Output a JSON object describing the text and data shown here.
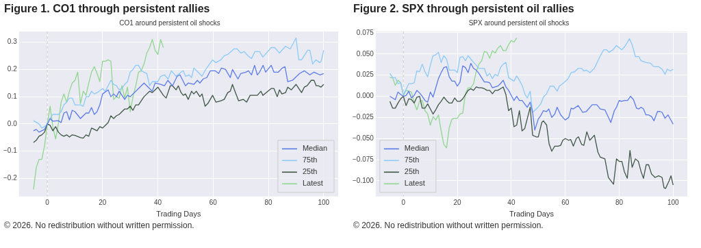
{
  "chart_data": [
    {
      "type": "line",
      "title": "Figure 1. CO1 through persistent rallies",
      "subtitle": "CO1 around persistent oil shocks",
      "xlabel": "Trading Days",
      "annotations": [
        "© 2026. No redistribution without written permission."
      ],
      "xlim": [
        -10.25,
        105.25
      ],
      "xticks": [
        0,
        20,
        40,
        60,
        80,
        100
      ],
      "ylim": [
        -0.266,
        0.339
      ],
      "yticks": [
        {
          "value": -0.2,
          "label": "−0.2"
        },
        {
          "value": -0.1,
          "label": "−0.1"
        },
        {
          "value": 0,
          "label": "0.0"
        },
        {
          "value": 0.1,
          "label": "0.1"
        },
        {
          "value": 0.2,
          "label": "0.2"
        },
        {
          "value": 0.3,
          "label": "0.3"
        }
      ],
      "grid": true,
      "legend": "bottom right",
      "marker": "none",
      "line_style": "solid",
      "ref_lines": [
        {
          "axis": "x",
          "value": 0,
          "color": "#c8c8c8",
          "line_style": "dashed"
        }
      ],
      "series": [
        {
          "name": "Median",
          "color": "#5b7be8",
          "x": [
            -5,
            -4,
            -3,
            -1,
            0,
            1,
            2,
            4,
            5,
            6,
            7,
            8,
            9,
            10,
            12,
            14,
            15,
            16,
            17,
            18,
            19,
            20,
            22,
            23,
            24,
            25,
            26,
            28,
            29,
            30,
            32,
            34,
            35,
            37,
            38,
            39,
            41,
            42.4,
            43.6,
            45.3,
            47,
            48,
            50,
            51,
            53,
            54.3,
            55.2,
            56.4,
            57.7,
            59,
            60.7,
            62,
            63,
            64.5,
            66.2,
            67,
            69,
            70,
            71.8,
            72.8,
            73.9,
            75,
            76,
            76.8,
            78.1,
            79,
            81,
            82,
            83.6,
            85,
            86,
            87,
            88.7,
            91.3,
            93,
            95,
            96.5,
            98.6,
            100
          ],
          "values": [
            -0.025,
            -0.02,
            -0.03,
            -0.02,
            0,
            0.02,
            0.01,
            0.012,
            0.005,
            0.04,
            0.045,
            0.015,
            0.05,
            0.045,
            0.02,
            0.04,
            0.04,
            0.06,
            0.035,
            0.045,
            0.07,
            0.11,
            0.125,
            0.1,
            0.11,
            0.1,
            0.12,
            0.09,
            0.105,
            0.1,
            0.12,
            0.14,
            0.15,
            0.13,
            0.12,
            0.15,
            0.145,
            0.14,
            0.16,
            0.14,
            0.175,
            0.18,
            0.14,
            0.15,
            0.145,
            0.16,
            0.15,
            0.165,
            0.17,
            0.195,
            0.195,
            0.185,
            0.205,
            0.2,
            0.17,
            0.2,
            0.165,
            0.185,
            0.19,
            0.195,
            0.18,
            0.215,
            0.18,
            0.19,
            0.215,
            0.19,
            0.215,
            0.19,
            0.19,
            0.205,
            0.21,
            0.155,
            0.16,
            0.185,
            0.195,
            0.18,
            0.19,
            0.18,
            0.185
          ]
        },
        {
          "name": "75th",
          "color": "#8ccaf7",
          "x": [
            -5,
            -3,
            -2,
            -1,
            0,
            1,
            2,
            4,
            5,
            6,
            7,
            8,
            9,
            10,
            12,
            13,
            14,
            15,
            16,
            17,
            18,
            20,
            21,
            22,
            23,
            24,
            25,
            26,
            27,
            28,
            29,
            30,
            31,
            32,
            33,
            34,
            35,
            36,
            37,
            38,
            40,
            41,
            42.4,
            43.7,
            44.9,
            46.6,
            48.4,
            49.2,
            50,
            51.3,
            52.2,
            53,
            56,
            57.3,
            59.8,
            61,
            62.8,
            64,
            65.3,
            67.5,
            68.7,
            70,
            71.3,
            72.6,
            73.9,
            75.1,
            76.8,
            78,
            81,
            82.3,
            84,
            86.2,
            87.9,
            90,
            91,
            92,
            94.2,
            95,
            96,
            97.2,
            98.6,
            99.1,
            100
          ],
          "values": [
            0.012,
            0,
            -0.015,
            -0.01,
            0,
            0.02,
            0.035,
            0.035,
            0.045,
            0.07,
            0.08,
            0.095,
            0.095,
            0.07,
            0.07,
            0.065,
            0.1,
            0.1,
            0.12,
            0.11,
            0.115,
            0.13,
            0.12,
            0.14,
            0.16,
            0.145,
            0.14,
            0.125,
            0.13,
            0.145,
            0.155,
            0.19,
            0.2,
            0.215,
            0.215,
            0.195,
            0.19,
            0.185,
            0.14,
            0.155,
            0.155,
            0.175,
            0.18,
            0.165,
            0.195,
            0.175,
            0.19,
            0.195,
            0.175,
            0.18,
            0.17,
            0.205,
            0.175,
            0.2,
            0.235,
            0.225,
            0.235,
            0.25,
            0.255,
            0.275,
            0.275,
            0.26,
            0.265,
            0.25,
            0.24,
            0.265,
            0.265,
            0.245,
            0.28,
            0.28,
            0.26,
            0.285,
            0.275,
            0.315,
            0.235,
            0.235,
            0.27,
            0.27,
            0.22,
            0.235,
            0.225,
            0.23,
            0.27
          ]
        },
        {
          "name": "25th",
          "color": "#3f5546",
          "x": [
            -5,
            -4,
            -3,
            -2,
            -1,
            0,
            1,
            2,
            3,
            4,
            5,
            6,
            7,
            8,
            9,
            10,
            12,
            13,
            14,
            15,
            16,
            17,
            18,
            19,
            20,
            21,
            22,
            23,
            24,
            25,
            26,
            27,
            28,
            29,
            30,
            31,
            32,
            33,
            34,
            35,
            36,
            37,
            38,
            39,
            40,
            41,
            42,
            43,
            44.5,
            45.3,
            46.6,
            47.4,
            48.4,
            49.2,
            50,
            51,
            52.2,
            53,
            53.9,
            55.2,
            56,
            57.1,
            58.1,
            59.8,
            61,
            62.8,
            64,
            65.3,
            66.2,
            67,
            67.9,
            69.2,
            70.9,
            72.1,
            73.4,
            75.1,
            76,
            77.3,
            78,
            79.8,
            81,
            82,
            83.2,
            84,
            84.9,
            86.2,
            87,
            88.3,
            90,
            92,
            93,
            94,
            95.5,
            96.5,
            97.3,
            98.1,
            99,
            100
          ],
          "values": [
            -0.068,
            -0.06,
            -0.045,
            -0.04,
            -0.03,
            0,
            -0.005,
            -0.025,
            -0.01,
            -0.03,
            -0.04,
            -0.045,
            -0.04,
            -0.048,
            -0.04,
            -0.042,
            -0.05,
            -0.052,
            -0.04,
            -0.045,
            -0.015,
            -0.02,
            -0.025,
            -0.01,
            -0.015,
            -0.005,
            0.005,
            0.03,
            0.02,
            0.03,
            0.035,
            0.045,
            0.055,
            0.055,
            0.065,
            0.05,
            0.07,
            0.07,
            0.085,
            0.1,
            0.11,
            0.12,
            0.115,
            0.125,
            0.135,
            0.12,
            0.105,
            0.095,
            0.14,
            0.14,
            0.125,
            0.14,
            0.115,
            0.105,
            0.11,
            0.09,
            0.12,
            0.11,
            0.12,
            0.1,
            0.11,
            0.065,
            0.075,
            0.105,
            0.08,
            0.085,
            0.09,
            0.115,
            0.12,
            0.145,
            0.12,
            0.085,
            0.09,
            0.08,
            0.105,
            0.105,
            0.105,
            0.12,
            0.105,
            0.12,
            0.13,
            0.13,
            0.1,
            0.125,
            0.11,
            0.115,
            0.135,
            0.125,
            0.145,
            0.115,
            0.135,
            0.14,
            0.16,
            0.16,
            0.14,
            0.14,
            0.135,
            0.145
          ]
        },
        {
          "name": "Latest",
          "color": "#8fd68f",
          "x": [
            -5,
            -4,
            -3,
            -2,
            -1,
            0,
            1,
            2,
            3,
            4,
            5,
            6,
            7,
            8,
            9,
            10,
            11,
            12,
            13,
            14,
            15,
            16,
            17,
            18,
            19,
            20,
            21,
            22,
            23,
            24,
            25,
            26,
            27,
            28,
            29,
            30,
            31,
            32,
            33,
            34,
            35,
            36,
            37,
            38,
            39,
            40,
            41,
            42
          ],
          "values": [
            -0.24,
            -0.16,
            -0.13,
            -0.13,
            -0.08,
            0,
            0.065,
            -0.01,
            -0.055,
            0,
            0.08,
            0.11,
            0.08,
            0.12,
            0.15,
            0.16,
            0.19,
            0.075,
            0.12,
            0.105,
            0.15,
            0.19,
            0.21,
            0.185,
            0.155,
            0.23,
            0.23,
            0.235,
            0.23,
            0.09,
            0.1,
            0.095,
            0.14,
            0.095,
            0.135,
            0.045,
            0.1,
            0.14,
            0.19,
            0.195,
            0.22,
            0.26,
            0.28,
            0.31,
            0.27,
            0.255,
            0.31,
            0.28
          ]
        }
      ]
    },
    {
      "type": "line",
      "title": "Figure 2. SPX through persistent oil rallies",
      "subtitle": "SPX around persistent oil shocks",
      "xlabel": "Trading Days",
      "annotations": [
        "© 2026. No redistribution without written permission."
      ],
      "xlim": [
        -10.25,
        105.25
      ],
      "xticks": [
        0,
        20,
        40,
        60,
        80,
        100
      ],
      "ylim": [
        -0.1185,
        0.0766
      ],
      "yticks": [
        {
          "value": -0.1,
          "label": "−0.100"
        },
        {
          "value": -0.075,
          "label": "−0.075"
        },
        {
          "value": -0.05,
          "label": "−0.050"
        },
        {
          "value": -0.025,
          "label": "−0.025"
        },
        {
          "value": 0,
          "label": "0.000"
        },
        {
          "value": 0.025,
          "label": "0.025"
        },
        {
          "value": 0.05,
          "label": "0.050"
        },
        {
          "value": 0.075,
          "label": "0.075"
        }
      ],
      "grid": true,
      "legend": "bottom left",
      "marker": "none",
      "line_style": "solid",
      "ref_lines": [
        {
          "axis": "x",
          "value": 0,
          "color": "#c8c8c8",
          "line_style": "dashed"
        }
      ],
      "series": [
        {
          "name": "Median",
          "color": "#5b7be8",
          "x": [
            -5,
            -3,
            -2,
            -1,
            0,
            1,
            2,
            3,
            4,
            5,
            6,
            7,
            8,
            9,
            10,
            11,
            12,
            13,
            14,
            15,
            16,
            17,
            18,
            19,
            20,
            21,
            22,
            23,
            24,
            25,
            26,
            27,
            28,
            29,
            30,
            31,
            32,
            33,
            34,
            35,
            36,
            37,
            38,
            39,
            40,
            41,
            42,
            43,
            44,
            45.9,
            47,
            47.9,
            48.7,
            50,
            50.9,
            51.9,
            53.1,
            53.9,
            55,
            56.1,
            57,
            58.3,
            60,
            61.3,
            62.2,
            63,
            64.8,
            66.5,
            67.8,
            70,
            71.7,
            73,
            74.7,
            76.9,
            78.2,
            79,
            80,
            80.8,
            82.1,
            83.1,
            84.2,
            85.3,
            86.4,
            87.3,
            88.1,
            89,
            89.9,
            90.9,
            92,
            92.9,
            94.2,
            95.1,
            95.9,
            97,
            98.1,
            100
          ],
          "values": [
            0,
            -0.004,
            0.005,
            0.002,
            0,
            0.001,
            0.006,
            -0.002,
            0.001,
            0.007,
            0.004,
            0,
            -0.005,
            -0.007,
            0.005,
            -0.001,
            0.01,
            0.021,
            0.028,
            0.034,
            0.035,
            0.023,
            0.018,
            0.018,
            0.012,
            0.017,
            0.036,
            0.034,
            0.028,
            0.039,
            0.033,
            0.031,
            0.027,
            0.022,
            0.017,
            0.017,
            0.016,
            0.01,
            0.011,
            0.012,
            0.015,
            0.019,
            0.011,
            0.007,
            0.001,
            -0.005,
            0,
            -0.005,
            -0.005,
            -0.013,
            -0.007,
            -0.019,
            -0.04,
            -0.027,
            -0.023,
            -0.017,
            -0.018,
            -0.015,
            -0.025,
            -0.021,
            -0.013,
            -0.022,
            -0.028,
            -0.025,
            -0.014,
            -0.015,
            -0.011,
            -0.019,
            -0.018,
            -0.01,
            -0.01,
            -0.015,
            -0.016,
            -0.031,
            -0.017,
            -0.013,
            -0.005,
            -0.006,
            -0.005,
            -0.005,
            0,
            -0.004,
            -0.014,
            -0.015,
            -0.013,
            -0.015,
            -0.022,
            -0.022,
            -0.024,
            -0.029,
            -0.018,
            -0.018,
            -0.019,
            -0.026,
            -0.022,
            -0.033
          ]
        },
        {
          "name": "75th",
          "color": "#8ccaf7",
          "x": [
            -5,
            -4,
            -3,
            -2,
            -1,
            0,
            1,
            2,
            3,
            4,
            5,
            6,
            7,
            8,
            9,
            10,
            11,
            12,
            13,
            14,
            15,
            16,
            17,
            18,
            19,
            20,
            21,
            22,
            23,
            24,
            25,
            26,
            27,
            28,
            29,
            30,
            31,
            32,
            33,
            34,
            35,
            36,
            37,
            38,
            39,
            40,
            41,
            42,
            43,
            44,
            45,
            45.9,
            47,
            47.9,
            49.6,
            50.9,
            51.9,
            53.1,
            54.4,
            55.7,
            57,
            57.8,
            59.1,
            60.9,
            62.2,
            63.5,
            64.8,
            66.1,
            66.9,
            67.8,
            69.1,
            70.8,
            73,
            74.3,
            75.3,
            76.2,
            77.7,
            79,
            81,
            82.1,
            83.8,
            84.8,
            86,
            87.3,
            88.1,
            89.9,
            91.6,
            92.9,
            94.6,
            95.9,
            97,
            97.8,
            99,
            100
          ],
          "values": [
            0.027,
            0.022,
            0.022,
            0.015,
            0.016,
            0.002,
            0.008,
            0.015,
            0.015,
            0.016,
            0.03,
            0.029,
            0.038,
            0.029,
            0.023,
            0.037,
            0.048,
            0.049,
            0.052,
            0.04,
            0.048,
            0.044,
            0.031,
            0.031,
            0.031,
            0.028,
            0.046,
            0.047,
            0.042,
            0.048,
            0.044,
            0.04,
            0.037,
            0.033,
            0.033,
            0.033,
            0.024,
            0.027,
            0.021,
            0.026,
            0.024,
            0.034,
            0.038,
            0.04,
            0.022,
            0.02,
            0.018,
            0.024,
            0.019,
            0.013,
            0.003,
            -0.002,
            0.006,
            -0.019,
            -0.014,
            -0.009,
            -0.001,
            0.003,
            0.012,
            0.012,
            0.006,
            0.012,
            0.015,
            0.02,
            0.028,
            0.029,
            0.033,
            0.033,
            0.03,
            0.031,
            0.028,
            0.033,
            0.048,
            0.055,
            0.055,
            0.052,
            0.055,
            0.06,
            0.055,
            0.059,
            0.068,
            0.061,
            0.047,
            0.047,
            0.042,
            0.04,
            0.039,
            0.035,
            0.035,
            0.032,
            0.026,
            0.032,
            0.03,
            0.032
          ]
        },
        {
          "name": "25th",
          "color": "#3f5546",
          "x": [
            -5,
            -4,
            -3,
            -2,
            -1,
            0,
            1,
            2,
            3,
            4,
            5,
            6,
            7,
            8,
            9,
            10,
            11,
            12,
            13,
            14,
            15,
            16,
            17,
            18,
            19,
            20,
            21,
            22,
            23,
            24,
            25,
            26,
            27,
            28,
            29,
            30,
            31,
            32,
            33,
            34,
            35,
            36,
            37,
            38,
            39,
            40,
            41,
            42,
            43,
            44,
            45,
            47,
            47.9,
            49.2,
            50,
            51.3,
            51.9,
            53.1,
            54,
            55,
            56.1,
            57.4,
            58.3,
            59.1,
            60,
            61.3,
            62,
            63,
            64.1,
            64.9,
            66.1,
            66.9,
            68,
            69.1,
            70.8,
            72.1,
            73,
            74.7,
            76,
            77.9,
            79,
            80,
            81,
            81.9,
            83,
            84,
            84.8,
            86,
            87.1,
            88.1,
            89,
            90,
            90.9,
            92,
            93.3,
            94.6,
            95.9,
            96.6,
            97.2,
            98.5,
            99.2,
            100
          ],
          "values": [
            -0.006,
            -0.014,
            -0.014,
            -0.008,
            -0.003,
            0,
            -0.011,
            -0.003,
            -0.004,
            -0.008,
            -0.001,
            0,
            -0.014,
            -0.014,
            -0.009,
            -0.015,
            -0.021,
            -0.016,
            -0.01,
            -0.006,
            -0.001,
            -0.005,
            -0.008,
            -0.008,
            -0.002,
            -0.006,
            -0.006,
            -0.003,
            0.002,
            0.007,
            0.009,
            0.007,
            0.011,
            0.01,
            0.01,
            0.009,
            0.007,
            0.007,
            0.003,
            0.007,
            0.007,
            0.009,
            0.011,
            0.002,
            -0.017,
            -0.014,
            -0.036,
            -0.034,
            -0.017,
            -0.041,
            -0.038,
            -0.013,
            -0.046,
            -0.048,
            -0.048,
            -0.031,
            -0.029,
            -0.034,
            -0.056,
            -0.065,
            -0.059,
            -0.059,
            -0.058,
            -0.052,
            -0.05,
            -0.052,
            -0.051,
            -0.059,
            -0.05,
            -0.048,
            -0.057,
            -0.058,
            -0.042,
            -0.052,
            -0.046,
            -0.066,
            -0.072,
            -0.074,
            -0.096,
            -0.104,
            -0.074,
            -0.077,
            -0.077,
            -0.089,
            -0.097,
            -0.064,
            -0.084,
            -0.074,
            -0.077,
            -0.089,
            -0.097,
            -0.081,
            -0.081,
            -0.092,
            -0.096,
            -0.094,
            -0.096,
            -0.108,
            -0.109,
            -0.1,
            -0.094,
            -0.105
          ]
        },
        {
          "name": "Latest",
          "color": "#8fd68f",
          "x": [
            -5,
            -4,
            -3,
            -2,
            -1,
            0,
            1,
            2,
            3,
            4,
            5,
            6,
            7,
            8,
            9,
            10,
            11,
            12,
            13,
            14,
            15,
            16,
            17,
            18,
            19,
            20,
            21,
            22,
            23,
            24,
            25,
            26,
            27,
            28,
            29,
            30,
            31,
            32,
            33,
            34,
            35,
            36,
            37,
            38,
            39,
            40,
            41,
            42
          ],
          "values": [
            0.022,
            0.022,
            0.013,
            0.019,
            0.016,
            0.001,
            0.007,
            0.006,
            0.005,
            -0.008,
            -0.016,
            -0.006,
            -0.005,
            -0.017,
            -0.021,
            -0.034,
            -0.024,
            -0.028,
            -0.022,
            -0.041,
            -0.057,
            -0.061,
            -0.037,
            -0.027,
            -0.026,
            -0.026,
            -0.021,
            -0.02,
            0.003,
            0.01,
            0.01,
            0.015,
            0.029,
            0.038,
            0.042,
            0.053,
            0.052,
            0.045,
            0.054,
            0.051,
            0.057,
            0.06,
            0.054,
            0.054,
            0.061,
            0.066,
            0.064,
            0.069
          ]
        }
      ]
    }
  ]
}
